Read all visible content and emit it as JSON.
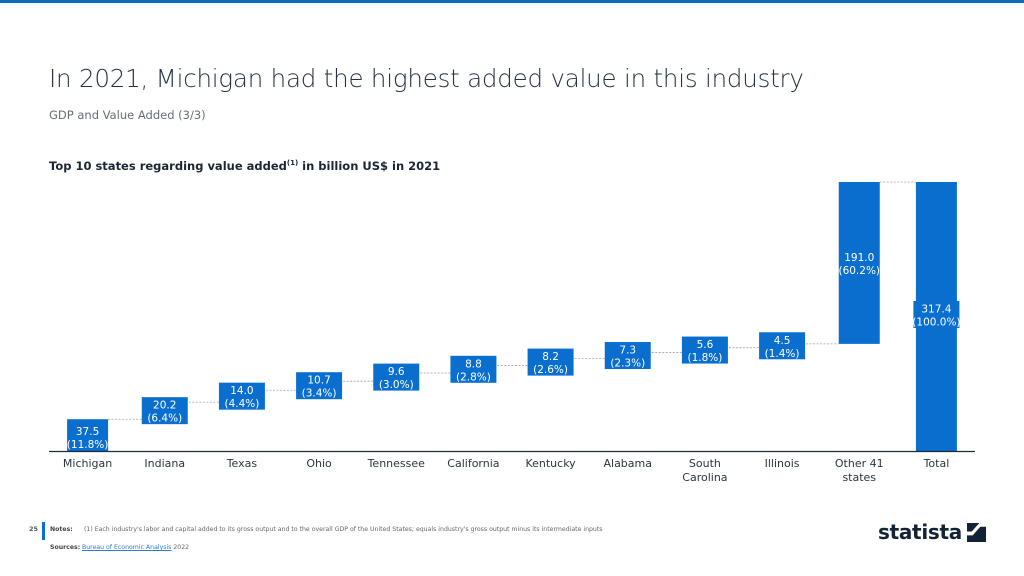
{
  "header": {
    "title": "In 2021, Michigan had the highest added value in this industry",
    "subtitle": "GDP and Value Added (3/3)"
  },
  "chart_title": {
    "text": "Top 10 states regarding value added",
    "superscript": "(1)",
    "suffix": " in billion US$ in 2021"
  },
  "chart_data": {
    "type": "bar",
    "subtype": "waterfall",
    "title": "Top 10 states regarding value added(1) in billion US$ in 2021",
    "xlabel": "",
    "ylabel": "",
    "unit": "billion US$",
    "ylim": [
      0,
      317.4
    ],
    "grid": false,
    "legend": "none",
    "bar_color": "#0a6ecf",
    "categories": [
      "Michigan",
      "Indiana",
      "Texas",
      "Ohio",
      "Tennessee",
      "California",
      "Kentucky",
      "Alabama",
      "South Carolina",
      "Illinois",
      "Other 41 states",
      "Total"
    ],
    "category_lines": [
      [
        "Michigan"
      ],
      [
        "Indiana"
      ],
      [
        "Texas"
      ],
      [
        "Ohio"
      ],
      [
        "Tennessee"
      ],
      [
        "California"
      ],
      [
        "Kentucky"
      ],
      [
        "Alabama"
      ],
      [
        "South",
        "Carolina"
      ],
      [
        "Illinois"
      ],
      [
        "Other 41",
        "states"
      ],
      [
        "Total"
      ]
    ],
    "values": [
      37.5,
      20.2,
      14.0,
      10.7,
      9.6,
      8.8,
      8.2,
      7.3,
      5.6,
      4.5,
      191.0,
      317.4
    ],
    "shares": [
      "11.8%",
      "6.4%",
      "4.4%",
      "3.4%",
      "3.0%",
      "2.8%",
      "2.6%",
      "2.3%",
      "1.8%",
      "1.4%",
      "60.2%",
      "100.0%"
    ],
    "value_labels": [
      "37.5",
      "20.2",
      "14.0",
      "10.7",
      "9.6",
      "8.8",
      "8.2",
      "7.3",
      "5.6",
      "4.5",
      "191.0",
      "317.4"
    ],
    "is_total": [
      false,
      false,
      false,
      false,
      false,
      false,
      false,
      false,
      false,
      false,
      false,
      true
    ]
  },
  "footer": {
    "page_number": "25",
    "notes_label": "Notes:",
    "notes_text": "(1) Each industry's labor and capital added to its gross output and to the overall GDP of the United States; equals industry's gross output minus its intermediate inputs",
    "sources_label": "Sources:",
    "sources_link": "Bureau of Economic Analysis",
    "sources_year": " 2022",
    "brand": "statista"
  }
}
